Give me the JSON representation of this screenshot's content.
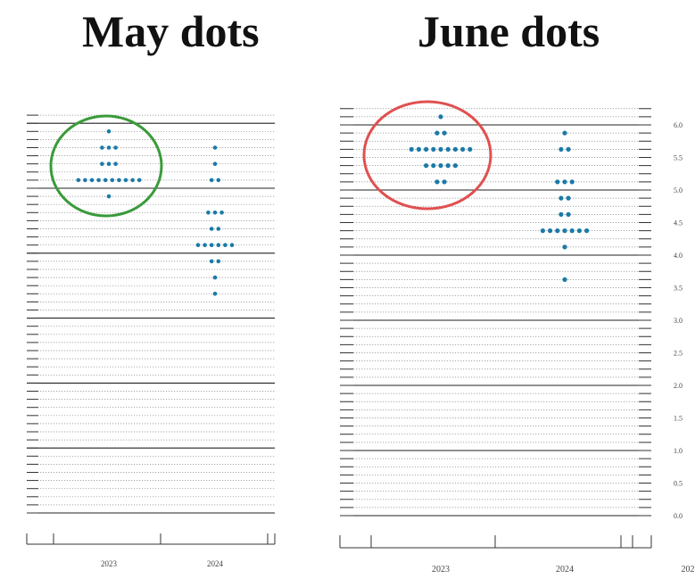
{
  "chart_data": [
    {
      "type": "scatter",
      "title": "May dots",
      "x_categories": [
        "2023",
        "2024"
      ],
      "ylim": [
        0,
        6.125
      ],
      "grid": true,
      "dots_color": "#1a7aa8",
      "highlight_color": "#3a9a3a",
      "highlight": "2023",
      "series": [
        {
          "category": "2023",
          "rates": [
            5.875,
            5.625,
            5.625,
            5.625,
            5.375,
            5.375,
            5.375,
            5.125,
            5.125,
            5.125,
            5.125,
            5.125,
            5.125,
            5.125,
            5.125,
            5.125,
            5.125,
            4.875
          ]
        },
        {
          "category": "2024",
          "rates": [
            5.625,
            5.375,
            5.125,
            5.125,
            4.625,
            4.625,
            4.625,
            4.375,
            4.375,
            4.125,
            4.125,
            4.125,
            4.125,
            4.125,
            4.125,
            3.875,
            3.875,
            3.625,
            3.375
          ]
        }
      ]
    },
    {
      "type": "scatter",
      "title": "June dots",
      "x_categories": [
        "2023",
        "2024",
        "202"
      ],
      "y_ticks": [
        "0.0",
        "0.5",
        "1.0",
        "1.5",
        "2.0",
        "2.5",
        "3.0",
        "3.5",
        "4.0",
        "4.5",
        "5.0",
        "5.5",
        "6.0"
      ],
      "ylim": [
        0,
        6.25
      ],
      "grid": true,
      "dots_color": "#1a7aa8",
      "highlight_color": "#e05050",
      "highlight": "2023",
      "series": [
        {
          "category": "2023",
          "rates": [
            6.125,
            5.875,
            5.875,
            5.625,
            5.625,
            5.625,
            5.625,
            5.625,
            5.625,
            5.625,
            5.625,
            5.625,
            5.375,
            5.375,
            5.375,
            5.375,
            5.375,
            5.125,
            5.125
          ]
        },
        {
          "category": "2024",
          "rates": [
            5.875,
            5.625,
            5.625,
            5.125,
            5.125,
            5.125,
            4.875,
            4.875,
            4.625,
            4.625,
            4.375,
            4.375,
            4.375,
            4.375,
            4.375,
            4.375,
            4.375,
            4.125,
            3.625
          ]
        }
      ]
    }
  ]
}
